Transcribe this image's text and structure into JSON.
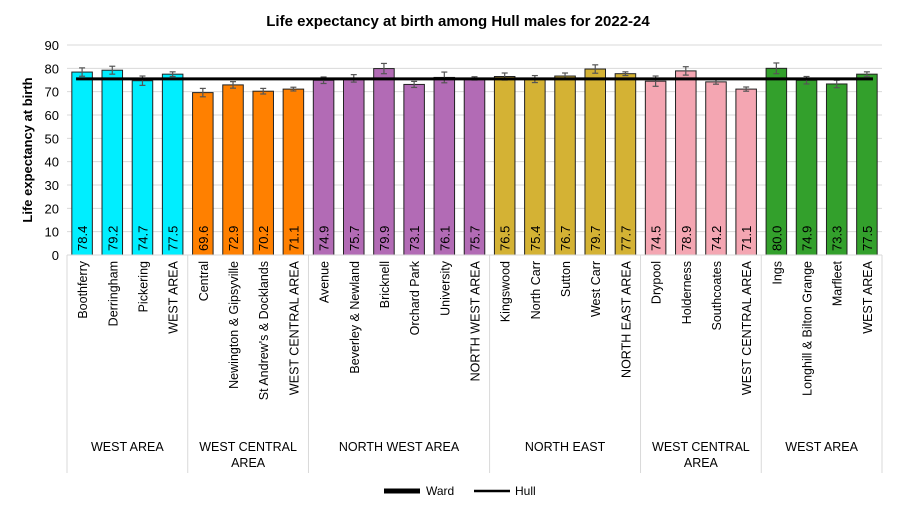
{
  "chart_data": {
    "type": "bar",
    "title": "Life expectancy at birth among Hull males for 2022-24",
    "xlabel": "",
    "ylabel": "Life expectancy at birth",
    "ylim": [
      0,
      90
    ],
    "yticks": [
      0,
      10,
      20,
      30,
      40,
      50,
      60,
      70,
      80,
      90
    ],
    "grid": true,
    "legend_position": "bottom",
    "legend": [
      {
        "label": "Ward",
        "marker": "thick-line"
      },
      {
        "label": "Hull",
        "marker": "line"
      }
    ],
    "hull_value": 75.5,
    "groups": [
      {
        "label": "WEST AREA",
        "color": "#00EEFF",
        "categories": [
          "Boothferry",
          "Derringham",
          "Pickering",
          "WEST AREA"
        ],
        "values": [
          78.4,
          79.2,
          74.7,
          77.5
        ],
        "ci": [
          1.8,
          1.7,
          2.0,
          1.0
        ]
      },
      {
        "label": "WEST CENTRAL AREA",
        "color": "#FF8000",
        "categories": [
          "Central",
          "Newington & Gipsyville",
          "St Andrew's & Docklands",
          "WEST CENTRAL AREA"
        ],
        "values": [
          69.6,
          72.9,
          70.2,
          71.1
        ],
        "ci": [
          1.8,
          1.4,
          1.2,
          0.8
        ]
      },
      {
        "label": "NORTH WEST AREA",
        "color": "#B26BB5",
        "categories": [
          "Avenue",
          "Beverley & Newland",
          "Bricknell",
          "Orchard Park",
          "University",
          "NORTH WEST AREA"
        ],
        "values": [
          74.9,
          75.7,
          79.9,
          73.1,
          76.1,
          75.7
        ],
        "ci": [
          1.4,
          1.6,
          2.2,
          1.3,
          2.3,
          0.7
        ]
      },
      {
        "label": "NORTH EAST",
        "color": "#D4B234",
        "categories": [
          "Kingswood",
          "North Carr",
          "Sutton",
          "West Carr",
          "NORTH EAST AREA"
        ],
        "values": [
          76.5,
          75.4,
          76.7,
          79.7,
          77.7
        ],
        "ci": [
          1.5,
          1.5,
          1.3,
          1.8,
          0.8
        ]
      },
      {
        "label": "WEST CENTRAL AREA",
        "color": "#F4A6B2",
        "categories": [
          "Drypool",
          "Holderness",
          "Southcoates",
          "WEST CENTRAL AREA"
        ],
        "values": [
          74.5,
          78.9,
          74.2,
          71.1
        ],
        "ci": [
          2.2,
          1.8,
          1.0,
          0.9
        ]
      },
      {
        "label": "WEST AREA",
        "color": "#33A02C",
        "categories": [
          "Ings",
          "Longhill & Bilton Grange",
          "Marfleet",
          "WEST AREA"
        ],
        "values": [
          80.0,
          74.9,
          73.3,
          77.5
        ],
        "ci": [
          2.3,
          1.6,
          1.6,
          1.0
        ]
      }
    ]
  }
}
